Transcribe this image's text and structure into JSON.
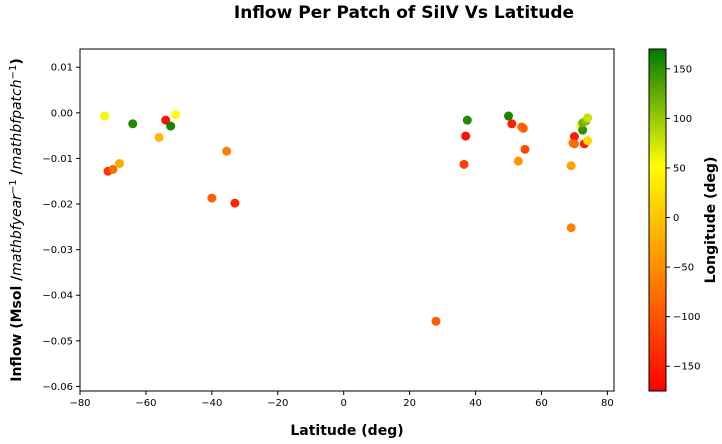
{
  "chart_data": {
    "type": "scatter",
    "title": "Inflow Per Patch of SiIV Vs Latitude",
    "xlabel": "Latitude (deg)",
    "ylabel": "Inflow (Msol /mathbfyear⁻¹ /mathbfpatch⁻¹)",
    "ylabel_parts": {
      "main": "Inflow (Msol /",
      "year": "mathbfyear",
      "exp1": "−1",
      "sep": " /",
      "patch": "mathbfpatch",
      "exp2": "−1",
      "end": ")"
    },
    "xlim": [
      -80,
      82
    ],
    "ylim": [
      -0.061,
      0.014
    ],
    "x_ticks": [
      -80,
      -60,
      -40,
      -20,
      0,
      20,
      40,
      60,
      80
    ],
    "x_tick_labels": [
      "−80",
      "−60",
      "−40",
      "−20",
      "0",
      "20",
      "40",
      "60",
      "80"
    ],
    "y_ticks": [
      0.01,
      0.0,
      -0.01,
      -0.02,
      -0.03,
      -0.04,
      -0.05,
      -0.06
    ],
    "y_tick_labels": [
      "0.01",
      "0.00",
      "−0.01",
      "−0.02",
      "−0.03",
      "−0.04",
      "−0.05",
      "−0.06"
    ],
    "grid": false,
    "colorbar": {
      "label": "Longitude (deg)",
      "range": [
        -175,
        170
      ],
      "ticks": [
        150,
        100,
        50,
        0,
        -50,
        -100,
        -150
      ],
      "tick_labels": [
        "150",
        "100",
        "50",
        "0",
        "−50",
        "−100",
        "−150"
      ],
      "colors": [
        "#ff0000",
        "#ff8000",
        "#ffff00",
        "#007a00"
      ]
    },
    "points": [
      {
        "x": -72.5,
        "y": -0.0007,
        "c": 60
      },
      {
        "x": -71.5,
        "y": -0.0128,
        "c": -130
      },
      {
        "x": -70.0,
        "y": -0.0124,
        "c": -80
      },
      {
        "x": -68.0,
        "y": -0.0111,
        "c": -20
      },
      {
        "x": -64.0,
        "y": -0.0024,
        "c": 155
      },
      {
        "x": -56.0,
        "y": -0.0054,
        "c": -10
      },
      {
        "x": -54.0,
        "y": -0.0016,
        "c": -160
      },
      {
        "x": -52.5,
        "y": -0.0029,
        "c": 160
      },
      {
        "x": -51.0,
        "y": -0.0004,
        "c": 55
      },
      {
        "x": -40.0,
        "y": -0.0187,
        "c": -90
      },
      {
        "x": -35.5,
        "y": -0.0084,
        "c": -60
      },
      {
        "x": -33.0,
        "y": -0.0198,
        "c": -140
      },
      {
        "x": 28.0,
        "y": -0.0457,
        "c": -90
      },
      {
        "x": 36.5,
        "y": -0.0113,
        "c": -120
      },
      {
        "x": 37.0,
        "y": -0.0051,
        "c": -160
      },
      {
        "x": 37.5,
        "y": -0.0016,
        "c": 155
      },
      {
        "x": 50.0,
        "y": -0.0007,
        "c": 160
      },
      {
        "x": 51.0,
        "y": -0.0024,
        "c": -150
      },
      {
        "x": 53.0,
        "y": -0.0106,
        "c": -40
      },
      {
        "x": 54.0,
        "y": -0.0031,
        "c": -80
      },
      {
        "x": 54.5,
        "y": -0.0034,
        "c": -90
      },
      {
        "x": 55.0,
        "y": -0.008,
        "c": -110
      },
      {
        "x": 69.0,
        "y": -0.0116,
        "c": -30
      },
      {
        "x": 69.0,
        "y": -0.0252,
        "c": -60
      },
      {
        "x": 69.5,
        "y": -0.0066,
        "c": -50
      },
      {
        "x": 70.0,
        "y": -0.0052,
        "c": -150
      },
      {
        "x": 70.0,
        "y": -0.0068,
        "c": -80
      },
      {
        "x": 72.0,
        "y": -0.003,
        "c": 40
      },
      {
        "x": 72.5,
        "y": -0.0038,
        "c": 150
      },
      {
        "x": 72.5,
        "y": -0.0022,
        "c": 120
      },
      {
        "x": 73.0,
        "y": -0.0068,
        "c": -150
      },
      {
        "x": 73.5,
        "y": -0.0018,
        "c": 110
      },
      {
        "x": 74.0,
        "y": -0.0011,
        "c": 80
      },
      {
        "x": 74.0,
        "y": -0.0061,
        "c": 20
      }
    ]
  }
}
